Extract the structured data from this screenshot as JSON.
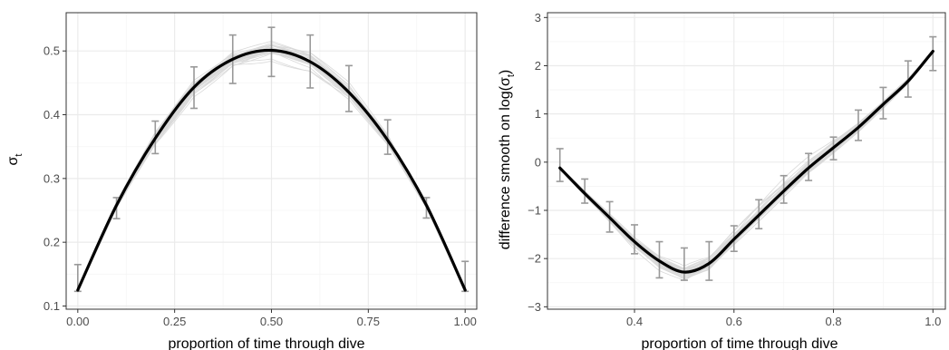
{
  "colors": {
    "mean_line": "#000000",
    "sample_lines": "#d9d9d9",
    "error_bars": "#999999",
    "grid_major": "#ebebeb",
    "grid_minor": "#f5f5f5",
    "panel_border": "#333333",
    "tick_text": "#4d4d4d"
  },
  "chart_data": [
    {
      "type": "line",
      "xlabel": "proportion of time through dive",
      "ylabel_base": "σ",
      "ylabel_sub": "t",
      "xlim": [
        -0.03,
        1.03
      ],
      "ylim": [
        0.095,
        0.56
      ],
      "x_ticks": [
        0.0,
        0.25,
        0.5,
        0.75,
        1.0
      ],
      "x_tick_labels": [
        "0.00",
        "0.25",
        "0.50",
        "0.75",
        "1.00"
      ],
      "y_ticks": [
        0.1,
        0.2,
        0.3,
        0.4,
        0.5
      ],
      "y_tick_labels": [
        "0.1",
        "0.2",
        "0.3",
        "0.4",
        "0.5"
      ],
      "grid": true,
      "mean_curve": {
        "x": [
          0.0,
          0.1,
          0.2,
          0.3,
          0.4,
          0.5,
          0.6,
          0.7,
          0.8,
          0.9,
          1.0
        ],
        "y": [
          0.125,
          0.258,
          0.363,
          0.443,
          0.487,
          0.501,
          0.483,
          0.435,
          0.36,
          0.258,
          0.125
        ]
      },
      "error_bars": {
        "x": [
          0.0,
          0.1,
          0.2,
          0.3,
          0.4,
          0.5,
          0.6,
          0.7,
          0.8,
          0.9,
          1.0
        ],
        "low": [
          0.123,
          0.237,
          0.339,
          0.41,
          0.449,
          0.46,
          0.442,
          0.405,
          0.338,
          0.238,
          0.123
        ],
        "high": [
          0.165,
          0.27,
          0.39,
          0.475,
          0.525,
          0.537,
          0.525,
          0.477,
          0.392,
          0.27,
          0.17
        ]
      },
      "sample_count": 30
    },
    {
      "type": "line",
      "xlabel": "proportion of time through dive",
      "ylabel_base": "difference smooth on log(σ",
      "ylabel_sub": "t",
      "ylabel_tail": ")",
      "xlim": [
        0.225,
        1.025
      ],
      "ylim": [
        -3.05,
        3.1
      ],
      "x_ticks": [
        0.4,
        0.6,
        0.8,
        1.0
      ],
      "x_tick_labels": [
        "0.4",
        "0.6",
        "0.8",
        "1.0"
      ],
      "y_ticks": [
        -3,
        -2,
        -1,
        0,
        1,
        2,
        3
      ],
      "y_tick_labels": [
        "−3",
        "−2",
        "−1",
        "0",
        "1",
        "2",
        "3"
      ],
      "grid": true,
      "mean_curve": {
        "x": [
          0.25,
          0.3,
          0.35,
          0.4,
          0.45,
          0.5,
          0.55,
          0.6,
          0.65,
          0.7,
          0.75,
          0.8,
          0.85,
          0.9,
          0.95,
          1.0
        ],
        "y": [
          -0.12,
          -0.65,
          -1.15,
          -1.65,
          -2.05,
          -2.28,
          -2.1,
          -1.6,
          -1.1,
          -0.6,
          -0.12,
          0.3,
          0.72,
          1.2,
          1.68,
          2.3
        ]
      },
      "error_bars": {
        "x": [
          0.25,
          0.3,
          0.35,
          0.4,
          0.45,
          0.5,
          0.55,
          0.6,
          0.65,
          0.7,
          0.75,
          0.8,
          0.85,
          0.9,
          0.95,
          1.0
        ],
        "low": [
          -0.4,
          -0.85,
          -1.45,
          -1.9,
          -2.4,
          -2.45,
          -2.45,
          -1.85,
          -1.38,
          -0.85,
          -0.38,
          0.05,
          0.45,
          0.9,
          1.35,
          1.9
        ],
        "high": [
          0.28,
          -0.35,
          -0.82,
          -1.3,
          -1.65,
          -1.78,
          -1.65,
          -1.32,
          -0.78,
          -0.28,
          0.18,
          0.52,
          1.08,
          1.55,
          2.1,
          2.6
        ]
      },
      "sample_count": 30
    }
  ]
}
